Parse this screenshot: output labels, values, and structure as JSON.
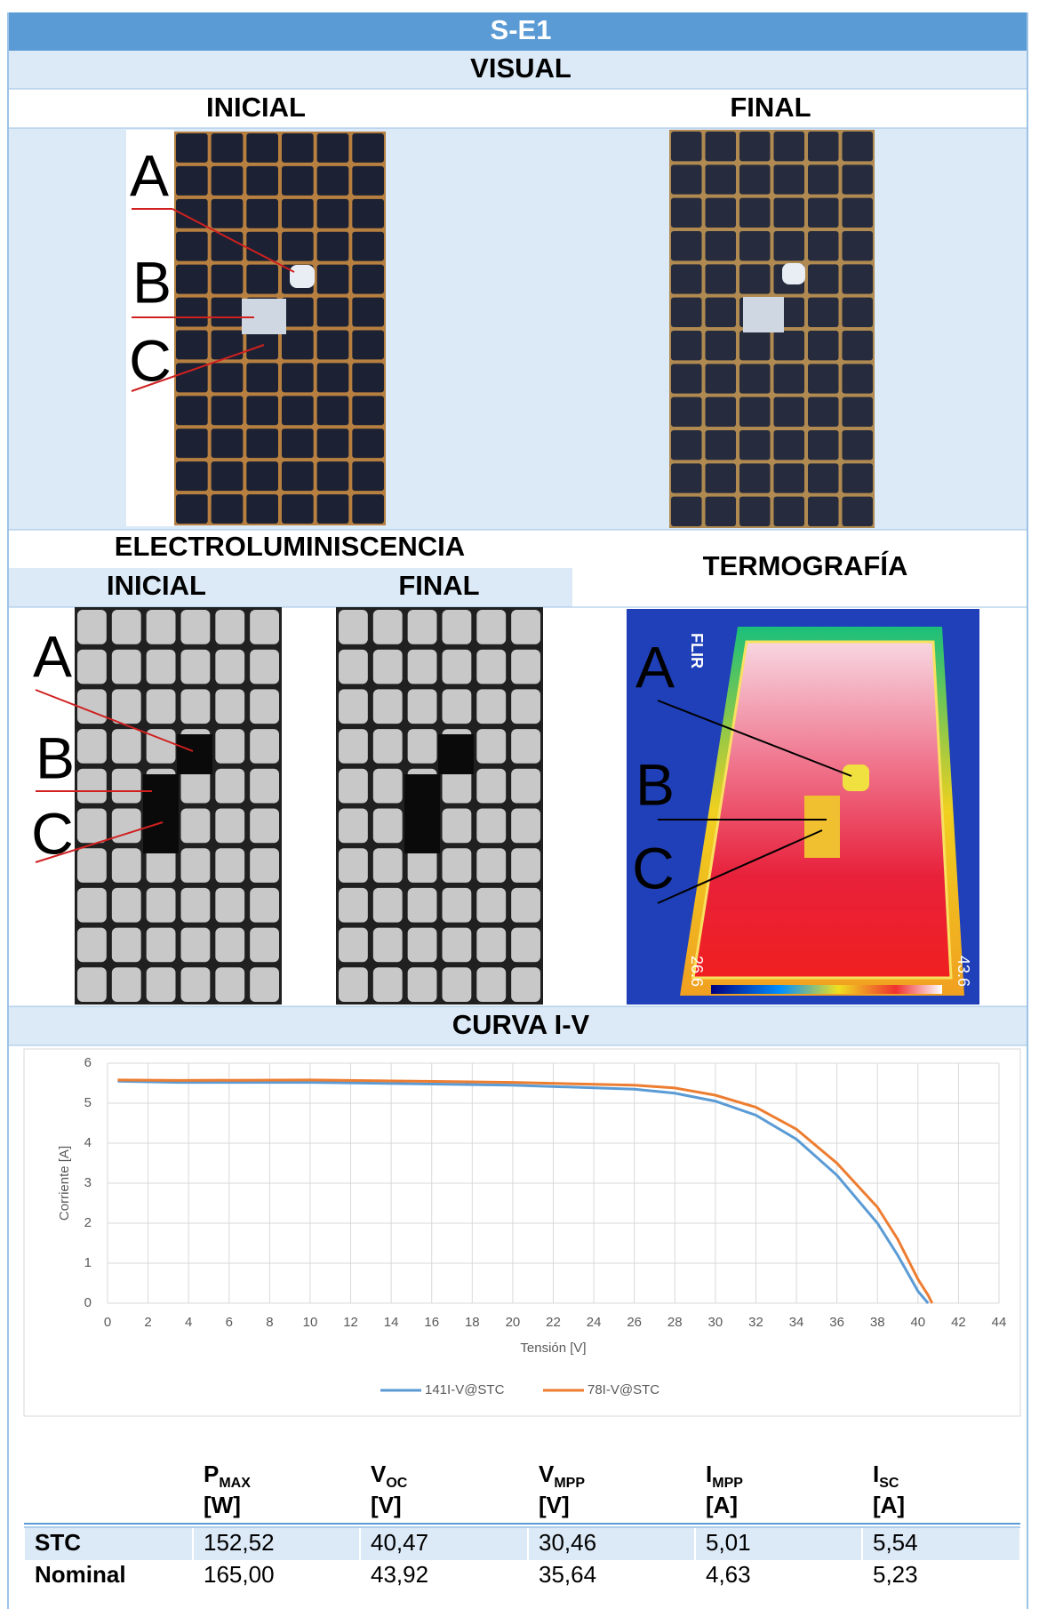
{
  "header": {
    "title": "S-E1"
  },
  "visual": {
    "title": "VISUAL",
    "initial": "INICIAL",
    "final": "FINAL",
    "markers": [
      "A",
      "B",
      "C"
    ]
  },
  "electroluminescence": {
    "title": "ELECTROLUMINISCENCIA",
    "initial": "INICIAL",
    "final": "FINAL",
    "markers": [
      "A",
      "B",
      "C"
    ]
  },
  "thermography": {
    "title": "TERMOGRAFÍA",
    "brand": "FLIR",
    "scale_min": "26.6",
    "scale_max": "43.6",
    "markers": [
      "A",
      "B",
      "C"
    ]
  },
  "curve": {
    "title": "CURVA I-V"
  },
  "chart_data": {
    "type": "line",
    "xlabel": "Tensión [V]",
    "ylabel": "Corriente [A]",
    "x": [
      0.5,
      3.5,
      10,
      20,
      26,
      28,
      30,
      32,
      34,
      36,
      38,
      39,
      40,
      40.5,
      40.7
    ],
    "series": [
      {
        "name": "141I-V@STC",
        "color": "#5b9bd5",
        "values": [
          5.55,
          5.52,
          5.52,
          5.45,
          5.35,
          5.25,
          5.05,
          4.7,
          4.1,
          3.2,
          2.0,
          1.2,
          0.3,
          0,
          null
        ]
      },
      {
        "name": "78I-V@STC",
        "color": "#ed7d31",
        "values": [
          5.58,
          5.57,
          5.58,
          5.52,
          5.45,
          5.38,
          5.2,
          4.9,
          4.35,
          3.5,
          2.4,
          1.6,
          0.6,
          0.2,
          0
        ]
      }
    ],
    "xlim": [
      0,
      44
    ],
    "xticks": [
      0,
      2,
      4,
      6,
      8,
      10,
      12,
      14,
      16,
      18,
      20,
      22,
      24,
      26,
      28,
      30,
      32,
      34,
      36,
      38,
      40,
      42,
      44
    ],
    "ylim": [
      0,
      6
    ],
    "yticks": [
      0,
      1,
      2,
      3,
      4,
      5,
      6
    ],
    "grid": true,
    "legend": "bottom"
  },
  "table": {
    "columns": [
      {
        "name": "P",
        "sub": "MAX",
        "unit": "[W]"
      },
      {
        "name": "V",
        "sub": "OC",
        "unit": "[V]"
      },
      {
        "name": "V",
        "sub": "MPP",
        "unit": "[V]"
      },
      {
        "name": "I",
        "sub": "MPP",
        "unit": "[A]"
      },
      {
        "name": "I",
        "sub": "SC",
        "unit": "[A]"
      }
    ],
    "rows": [
      [
        "STC",
        "152,52",
        "40,47",
        "30,46",
        "5,01",
        "5,54"
      ],
      [
        "Nominal",
        "165,00",
        "43,92",
        "35,64",
        "4,63",
        "5,23"
      ]
    ]
  }
}
